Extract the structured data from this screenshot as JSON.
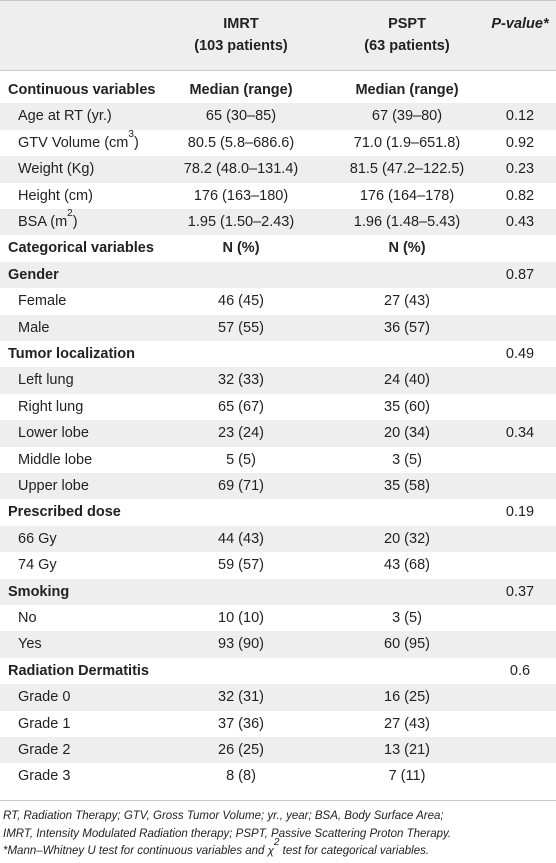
{
  "header": {
    "col2_line1": "IMRT",
    "col2_line2": "(103 patients)",
    "col3_line1": "PSPT",
    "col3_line2": "(63 patients)",
    "col4_label": "P-value*"
  },
  "rows": [
    {
      "label": "Continuous variables",
      "imrt": "Median (range)",
      "pspt": "Median (range)",
      "p": "",
      "kind": "section"
    },
    {
      "label": "Age at RT (yr.)",
      "imrt": "65 (30–85)",
      "pspt": "67 (39–80)",
      "p": "0.12",
      "kind": "item"
    },
    {
      "label": "GTV Volume (cm",
      "sup": "3",
      "label_tail": ")",
      "imrt": "80.5 (5.8–686.6)",
      "pspt": "71.0 (1.9–651.8)",
      "p": "0.92",
      "kind": "item"
    },
    {
      "label": "Weight (Kg)",
      "imrt": "78.2 (48.0–131.4)",
      "pspt": "81.5 (47.2–122.5)",
      "p": "0.23",
      "kind": "item"
    },
    {
      "label": "Height (cm)",
      "imrt": "176 (163–180)",
      "pspt": "176 (164–178)",
      "p": "0.82",
      "kind": "item"
    },
    {
      "label": "BSA (m",
      "sup": "2",
      "label_tail": ")",
      "imrt": "1.95 (1.50–2.43)",
      "pspt": "1.96 (1.48–5.43)",
      "p": "0.43",
      "kind": "item"
    },
    {
      "label": "Categorical variables",
      "imrt": "N (%)",
      "pspt": "N (%)",
      "p": "",
      "kind": "section"
    },
    {
      "label": "Gender",
      "imrt": "",
      "pspt": "",
      "p": "0.87",
      "kind": "group"
    },
    {
      "label": "Female",
      "imrt": "46 (45)",
      "pspt": "27 (43)",
      "p": "",
      "kind": "item"
    },
    {
      "label": "Male",
      "imrt": "57 (55)",
      "pspt": "36 (57)",
      "p": "",
      "kind": "item"
    },
    {
      "label": "Tumor localization",
      "imrt": "",
      "pspt": "",
      "p": "0.49",
      "kind": "group"
    },
    {
      "label": "Left lung",
      "imrt": "32 (33)",
      "pspt": "24 (40)",
      "p": "",
      "kind": "item"
    },
    {
      "label": "Right lung",
      "imrt": "65 (67)",
      "pspt": "35 (60)",
      "p": "",
      "kind": "item"
    },
    {
      "label": "Lower lobe",
      "imrt": "23 (24)",
      "pspt": "20 (34)",
      "p": "0.34",
      "kind": "item"
    },
    {
      "label": "Middle lobe",
      "imrt": "5 (5)",
      "pspt": "3 (5)",
      "p": "",
      "kind": "item"
    },
    {
      "label": "Upper lobe",
      "imrt": "69 (71)",
      "pspt": "35 (58)",
      "p": "",
      "kind": "item"
    },
    {
      "label": "Prescribed dose",
      "imrt": "",
      "pspt": "",
      "p": "0.19",
      "kind": "group"
    },
    {
      "label": "66 Gy",
      "imrt": "44 (43)",
      "pspt": "20 (32)",
      "p": "",
      "kind": "item"
    },
    {
      "label": "74 Gy",
      "imrt": "59 (57)",
      "pspt": "43 (68)",
      "p": "",
      "kind": "item"
    },
    {
      "label": "Smoking",
      "imrt": "",
      "pspt": "",
      "p": "0.37",
      "kind": "group"
    },
    {
      "label": "No",
      "imrt": "10 (10)",
      "pspt": "3 (5)",
      "p": "",
      "kind": "item"
    },
    {
      "label": "Yes",
      "imrt": "93 (90)",
      "pspt": "60 (95)",
      "p": "",
      "kind": "item"
    },
    {
      "label": "Radiation Dermatitis",
      "imrt": "",
      "pspt": "",
      "p": "0.6",
      "kind": "group"
    },
    {
      "label": "Grade 0",
      "imrt": "32 (31)",
      "pspt": "16 (25)",
      "p": "",
      "kind": "item"
    },
    {
      "label": "Grade 1",
      "imrt": "37 (36)",
      "pspt": "27 (43)",
      "p": "",
      "kind": "item"
    },
    {
      "label": "Grade 2",
      "imrt": "26 (25)",
      "pspt": "13 (21)",
      "p": "",
      "kind": "item"
    },
    {
      "label": "Grade 3",
      "imrt": "8 (8)",
      "pspt": "7 (11)",
      "p": "",
      "kind": "item"
    }
  ],
  "footnote": {
    "line1": "RT, Radiation Therapy; GTV, Gross Tumor Volume; yr., year; BSA, Body Surface Area;",
    "line2": "IMRT, Intensity Modulated Radiation therapy; PSPT, Passive Scattering Proton Therapy.",
    "line3_a": "*Mann–Whitney U test for continuous variables and χ",
    "line3_sup": "2",
    "line3_b": " test for categorical variables."
  }
}
